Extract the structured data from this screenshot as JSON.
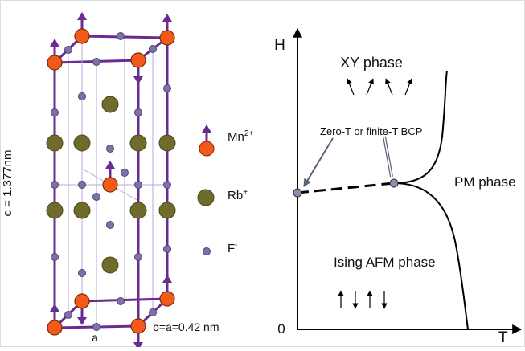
{
  "structure": {
    "c_label": "c = 1.377nm",
    "a_label": "a",
    "b_label": "b=a=0.42 nm",
    "legend": [
      {
        "text": "Mn",
        "sup": "2+"
      },
      {
        "text": "Rb",
        "sup": "+"
      },
      {
        "text": "F",
        "sup": "-"
      }
    ]
  },
  "phase_diagram": {
    "y_axis": "H",
    "x_axis": "T",
    "origin": "0",
    "xy_phase": "XY phase",
    "bcp": "Zero-T or finite-T BCP",
    "pm_phase": "PM phase",
    "ising_phase": "Ising AFM phase"
  }
}
